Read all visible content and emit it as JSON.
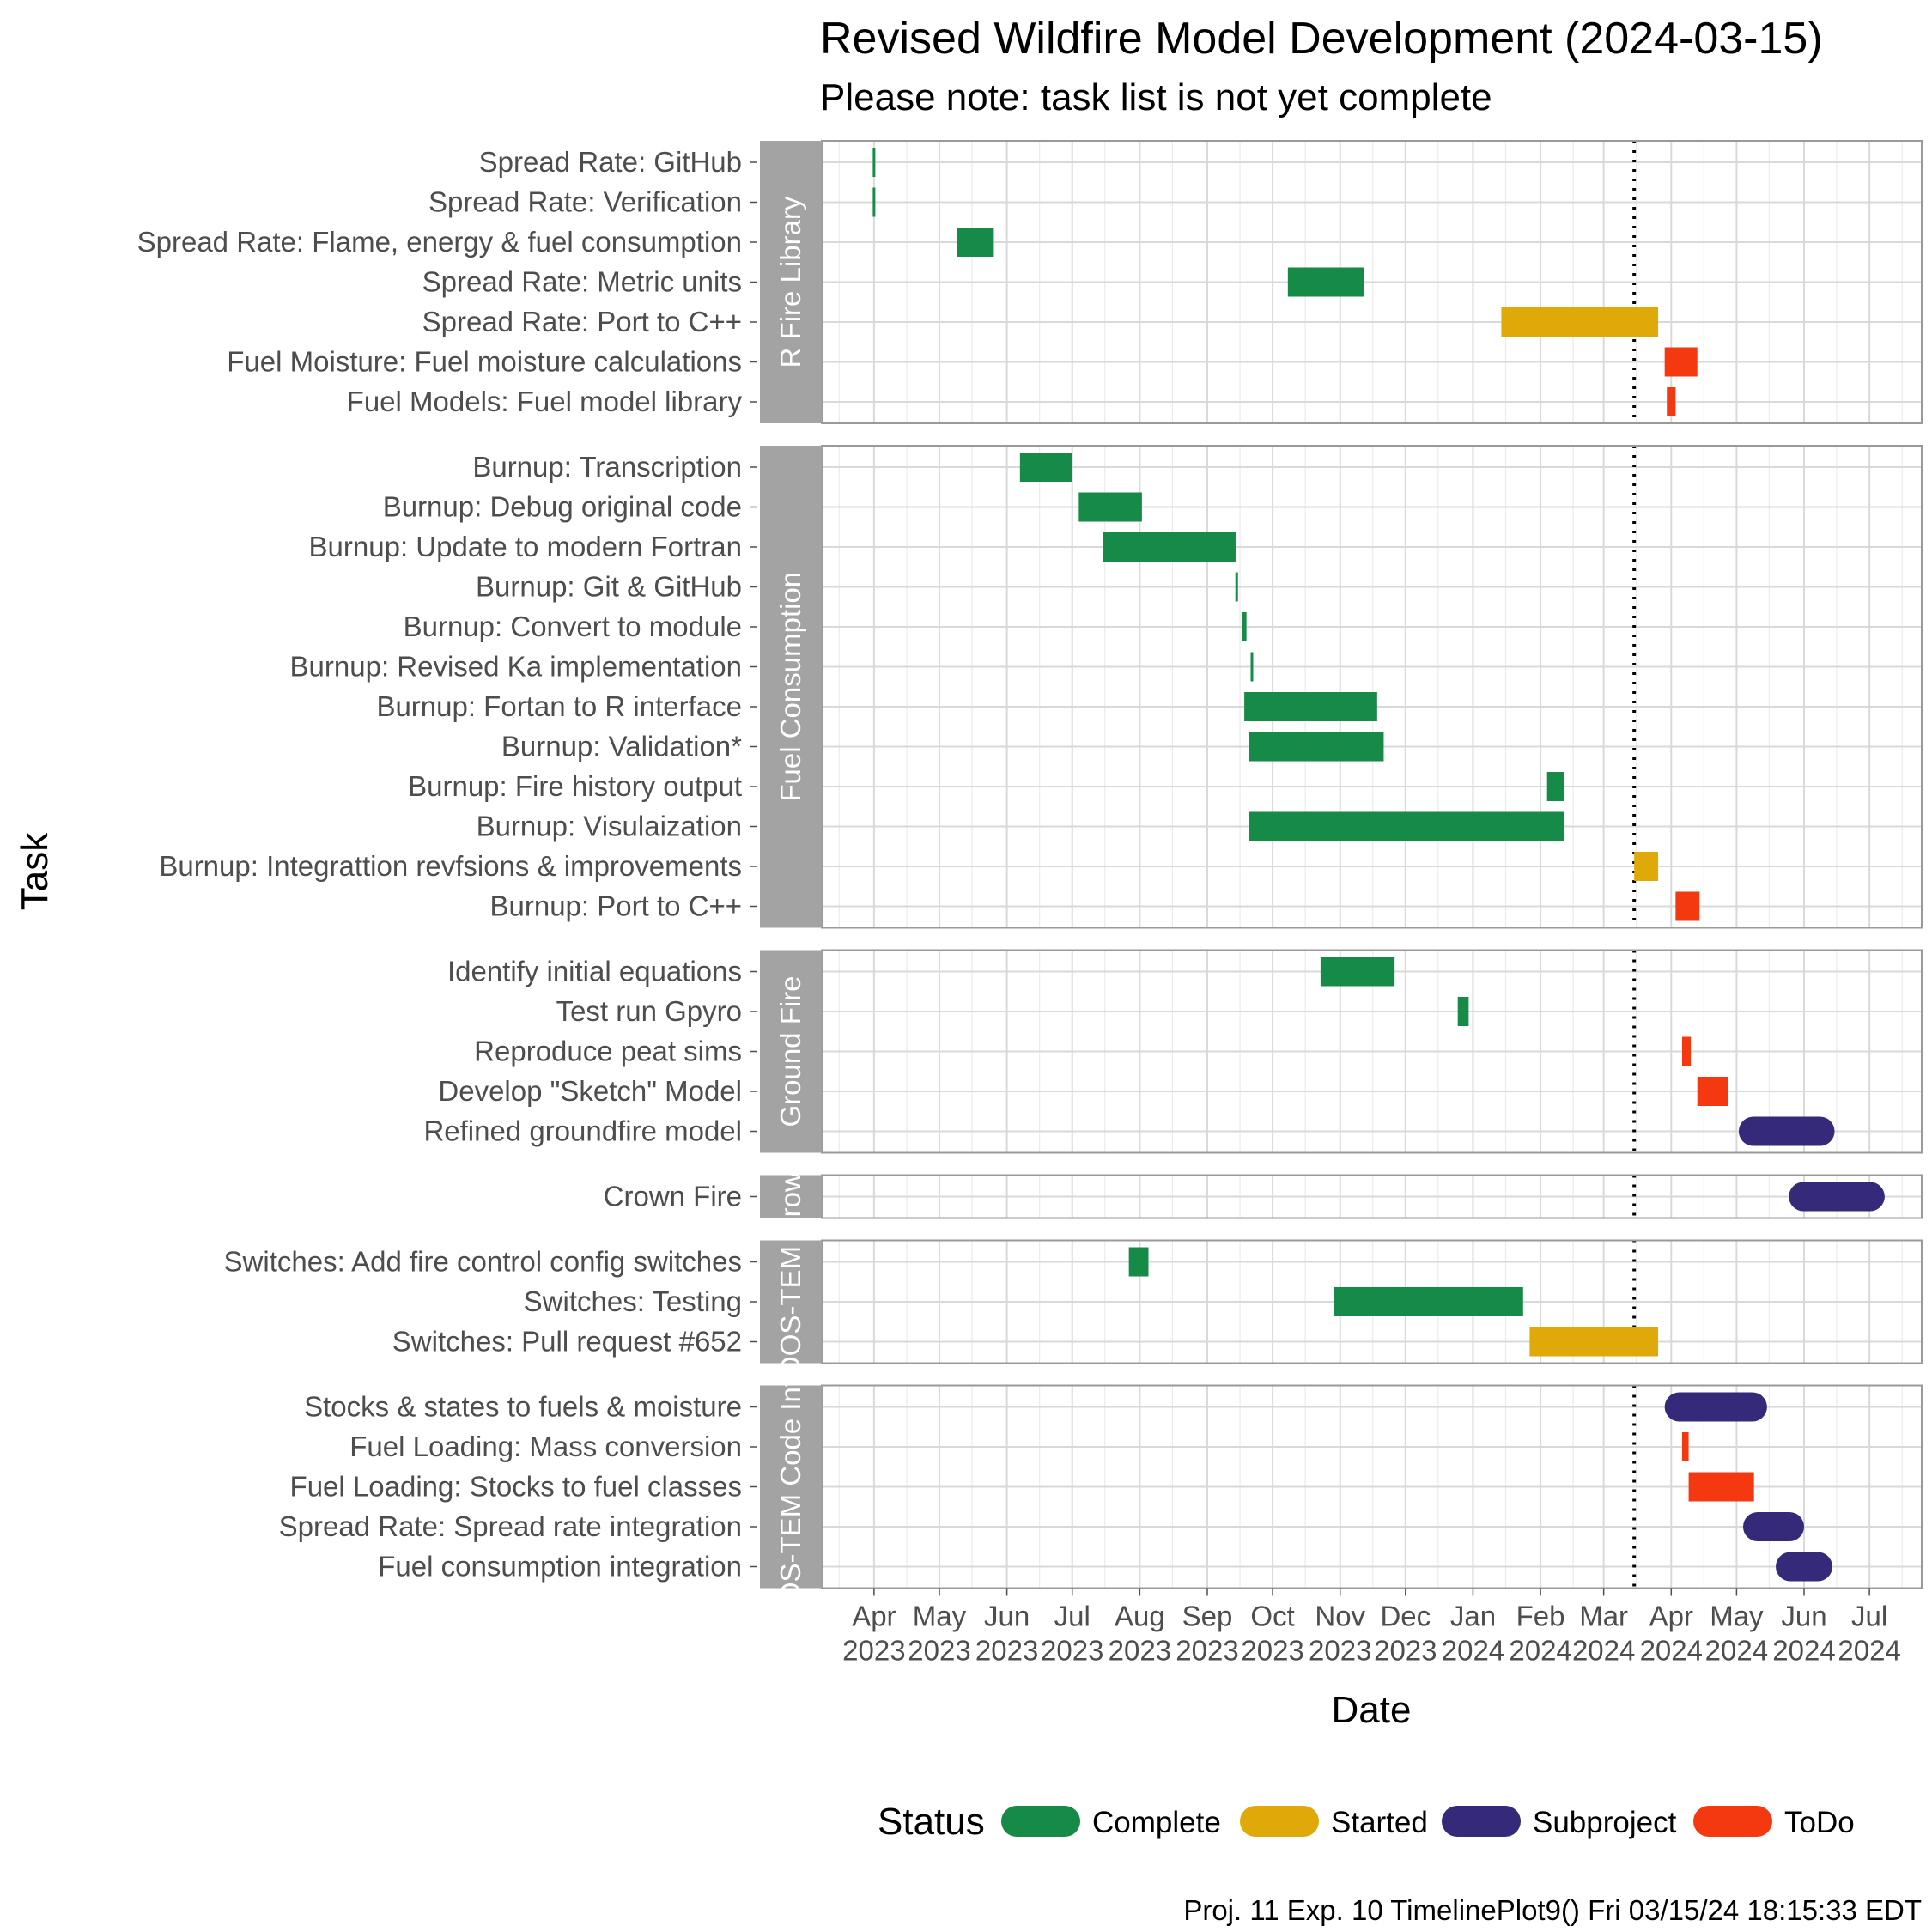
{
  "title": "Revised Wildfire Model Development (2024-03-15)",
  "subtitle": "Please note: task list is not yet complete",
  "caption": "Proj. 11 Exp. 10 TimelinePlot9() Fri 03/15/24 18:15:33 EDT",
  "chart_data": {
    "type": "gantt",
    "title": "Revised Wildfire Model Development (2024-03-15)",
    "subtitle": "Please note: task list is not yet complete",
    "xlabel": "Date",
    "ylabel": "Task",
    "xlim": [
      "2023-03-08",
      "2024-07-25"
    ],
    "today": "2024-03-15",
    "x_ticks": [
      {
        "date": "2023-04-01",
        "month": "Apr",
        "year": "2023"
      },
      {
        "date": "2023-05-01",
        "month": "May",
        "year": "2023"
      },
      {
        "date": "2023-06-01",
        "month": "Jun",
        "year": "2023"
      },
      {
        "date": "2023-07-01",
        "month": "Jul",
        "year": "2023"
      },
      {
        "date": "2023-08-01",
        "month": "Aug",
        "year": "2023"
      },
      {
        "date": "2023-09-01",
        "month": "Sep",
        "year": "2023"
      },
      {
        "date": "2023-10-01",
        "month": "Oct",
        "year": "2023"
      },
      {
        "date": "2023-11-01",
        "month": "Nov",
        "year": "2023"
      },
      {
        "date": "2023-12-01",
        "month": "Dec",
        "year": "2023"
      },
      {
        "date": "2024-01-01",
        "month": "Jan",
        "year": "2024"
      },
      {
        "date": "2024-02-01",
        "month": "Feb",
        "year": "2024"
      },
      {
        "date": "2024-03-01",
        "month": "Mar",
        "year": "2024"
      },
      {
        "date": "2024-04-01",
        "month": "Apr",
        "year": "2024"
      },
      {
        "date": "2024-05-01",
        "month": "May",
        "year": "2024"
      },
      {
        "date": "2024-06-01",
        "month": "Jun",
        "year": "2024"
      },
      {
        "date": "2024-07-01",
        "month": "Jul",
        "year": "2024"
      }
    ],
    "legend": {
      "title": "Status",
      "items": [
        {
          "label": "Complete",
          "color": "#168a47"
        },
        {
          "label": "Started",
          "color": "#e0a90a"
        },
        {
          "label": "Subproject",
          "color": "#352a7a"
        },
        {
          "label": "ToDo",
          "color": "#f4380f"
        }
      ]
    },
    "panels": [
      {
        "name": "R Fire Library",
        "tasks": [
          {
            "label": "Spread Rate: GitHub",
            "start": "2023-04-01",
            "end": "2023-04-01",
            "status": "Complete"
          },
          {
            "label": "Spread Rate: Verification",
            "start": "2023-04-01",
            "end": "2023-04-01",
            "status": "Complete"
          },
          {
            "label": "Spread Rate: Flame, energy & fuel consumption",
            "start": "2023-05-09",
            "end": "2023-05-26",
            "status": "Complete"
          },
          {
            "label": "Spread Rate: Metric units",
            "start": "2023-10-08",
            "end": "2023-11-12",
            "status": "Complete"
          },
          {
            "label": "Spread Rate: Port to C++",
            "start": "2024-01-14",
            "end": "2024-03-26",
            "status": "Started"
          },
          {
            "label": "Fuel Moisture: Fuel moisture calculations",
            "start": "2024-03-29",
            "end": "2024-04-13",
            "status": "ToDo"
          },
          {
            "label": "Fuel Models: Fuel model library",
            "start": "2024-03-30",
            "end": "2024-04-03",
            "status": "ToDo"
          }
        ]
      },
      {
        "name": "Fuel Consumption",
        "tasks": [
          {
            "label": "Burnup: Transcription",
            "start": "2023-06-07",
            "end": "2023-07-01",
            "status": "Complete"
          },
          {
            "label": "Burnup: Debug original code",
            "start": "2023-07-04",
            "end": "2023-08-02",
            "status": "Complete"
          },
          {
            "label": "Burnup: Update to modern Fortran",
            "start": "2023-07-15",
            "end": "2023-09-14",
            "status": "Complete"
          },
          {
            "label": "Burnup: Git & GitHub",
            "start": "2023-09-14",
            "end": "2023-09-15",
            "status": "Complete"
          },
          {
            "label": "Burnup: Convert to module",
            "start": "2023-09-17",
            "end": "2023-09-19",
            "status": "Complete"
          },
          {
            "label": "Burnup: Revised Ka implementation",
            "start": "2023-09-21",
            "end": "2023-09-22",
            "status": "Complete"
          },
          {
            "label": "Burnup: Fortan to R interface",
            "start": "2023-09-18",
            "end": "2023-11-18",
            "status": "Complete"
          },
          {
            "label": "Burnup: Validation*",
            "start": "2023-09-20",
            "end": "2023-11-21",
            "status": "Complete"
          },
          {
            "label": "Burnup: Fire history output",
            "start": "2024-02-04",
            "end": "2024-02-12",
            "status": "Complete"
          },
          {
            "label": "Burnup: Visulaization",
            "start": "2023-09-20",
            "end": "2024-02-12",
            "status": "Complete"
          },
          {
            "label": "Burnup: Integrattion revfsions & improvements",
            "start": "2024-03-15",
            "end": "2024-03-26",
            "status": "Started"
          },
          {
            "label": "Burnup: Port to C++",
            "start": "2024-04-03",
            "end": "2024-04-14",
            "status": "ToDo"
          }
        ]
      },
      {
        "name": "Ground Fire",
        "tasks": [
          {
            "label": "Identify initial equations",
            "start": "2023-10-23",
            "end": "2023-11-26",
            "status": "Complete"
          },
          {
            "label": "Test run Gpyro",
            "start": "2023-12-25",
            "end": "2023-12-30",
            "status": "Complete"
          },
          {
            "label": "Reproduce peat sims",
            "start": "2024-04-06",
            "end": "2024-04-10",
            "status": "ToDo"
          },
          {
            "label": "Develop \"Sketch\" Model",
            "start": "2024-04-13",
            "end": "2024-04-27",
            "status": "ToDo"
          },
          {
            "label": "Refined groundfire model",
            "start": "2024-05-02",
            "end": "2024-06-15",
            "status": "Subproject"
          }
        ]
      },
      {
        "name": "Crown",
        "tasks": [
          {
            "label": "Crown Fire",
            "start": "2024-05-25",
            "end": "2024-07-08",
            "status": "Subproject"
          }
        ]
      },
      {
        "name": "DVM-DOS-TEM fire wn",
        "tasks": [
          {
            "label": "Switches: Add fire control config switches",
            "start": "2023-07-27",
            "end": "2023-08-05",
            "status": "Complete"
          },
          {
            "label": "Switches: Testing",
            "start": "2023-10-29",
            "end": "2024-01-24",
            "status": "Complete"
          },
          {
            "label": "Switches: Pull request #652",
            "start": "2024-01-27",
            "end": "2024-03-26",
            "status": "Started"
          }
        ]
      },
      {
        "name": "DVM-DOS-TEM Code Integration",
        "tasks": [
          {
            "label": "Stocks & states to fuels & moisture",
            "start": "2024-03-29",
            "end": "2024-05-15",
            "status": "Subproject"
          },
          {
            "label": "Fuel Loading: Mass conversion",
            "start": "2024-04-06",
            "end": "2024-04-09",
            "status": "ToDo"
          },
          {
            "label": "Fuel Loading: Stocks to fuel classes",
            "start": "2024-04-09",
            "end": "2024-05-09",
            "status": "ToDo"
          },
          {
            "label": "Spread Rate: Spread rate integration",
            "start": "2024-05-04",
            "end": "2024-06-01",
            "status": "Subproject"
          },
          {
            "label": "Fuel consumption integration",
            "start": "2024-05-19",
            "end": "2024-06-14",
            "status": "Subproject"
          }
        ]
      }
    ]
  }
}
